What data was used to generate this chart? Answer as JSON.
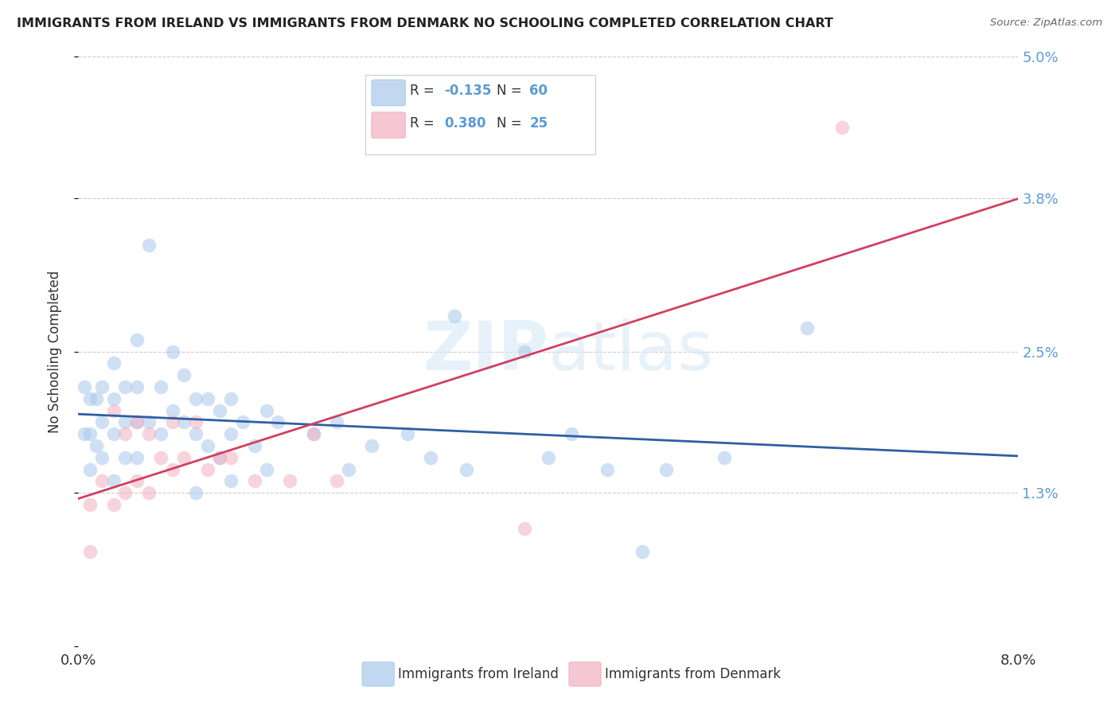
{
  "title": "IMMIGRANTS FROM IRELAND VS IMMIGRANTS FROM DENMARK NO SCHOOLING COMPLETED CORRELATION CHART",
  "source": "Source: ZipAtlas.com",
  "ylabel": "No Schooling Completed",
  "xlim": [
    0.0,
    0.08
  ],
  "ylim": [
    0.0,
    0.05
  ],
  "ytick_vals": [
    0.0,
    0.013,
    0.025,
    0.038,
    0.05
  ],
  "ytick_labels": [
    "",
    "1.3%",
    "2.5%",
    "3.8%",
    "5.0%"
  ],
  "xtick_vals": [
    0.0,
    0.02,
    0.04,
    0.06,
    0.08
  ],
  "xtick_labels": [
    "0.0%",
    "",
    "",
    "",
    "8.0%"
  ],
  "ireland_color": "#A8C8EC",
  "ireland_line_color": "#2E5FA3",
  "denmark_color": "#F2B0C0",
  "denmark_line_color": "#D04060",
  "ireland_R": "-0.135",
  "ireland_N": "60",
  "denmark_R": "0.380",
  "denmark_N": "25",
  "legend_label_ireland": "Immigrants from Ireland",
  "legend_label_denmark": "Immigrants from Denmark",
  "watermark_zip": "ZIP",
  "watermark_atlas": "atlas",
  "background_color": "#ffffff",
  "axis_label_color": "#5B9BD5",
  "ireland_x": [
    0.0005,
    0.0005,
    0.001,
    0.001,
    0.001,
    0.0015,
    0.0015,
    0.002,
    0.002,
    0.002,
    0.003,
    0.003,
    0.003,
    0.003,
    0.004,
    0.004,
    0.004,
    0.005,
    0.005,
    0.005,
    0.005,
    0.006,
    0.006,
    0.007,
    0.007,
    0.008,
    0.008,
    0.009,
    0.009,
    0.01,
    0.01,
    0.01,
    0.011,
    0.011,
    0.012,
    0.012,
    0.013,
    0.013,
    0.013,
    0.014,
    0.015,
    0.016,
    0.016,
    0.017,
    0.02,
    0.022,
    0.023,
    0.025,
    0.028,
    0.03,
    0.032,
    0.033,
    0.038,
    0.04,
    0.042,
    0.045,
    0.048,
    0.05,
    0.055,
    0.062
  ],
  "ireland_y": [
    0.022,
    0.018,
    0.021,
    0.018,
    0.015,
    0.021,
    0.017,
    0.022,
    0.019,
    0.016,
    0.024,
    0.021,
    0.018,
    0.014,
    0.022,
    0.019,
    0.016,
    0.026,
    0.022,
    0.019,
    0.016,
    0.034,
    0.019,
    0.022,
    0.018,
    0.025,
    0.02,
    0.023,
    0.019,
    0.021,
    0.018,
    0.013,
    0.021,
    0.017,
    0.02,
    0.016,
    0.021,
    0.018,
    0.014,
    0.019,
    0.017,
    0.02,
    0.015,
    0.019,
    0.018,
    0.019,
    0.015,
    0.017,
    0.018,
    0.016,
    0.028,
    0.015,
    0.025,
    0.016,
    0.018,
    0.015,
    0.008,
    0.015,
    0.016,
    0.027
  ],
  "denmark_x": [
    0.001,
    0.001,
    0.002,
    0.003,
    0.003,
    0.004,
    0.004,
    0.005,
    0.005,
    0.006,
    0.006,
    0.007,
    0.008,
    0.008,
    0.009,
    0.01,
    0.011,
    0.012,
    0.013,
    0.015,
    0.018,
    0.02,
    0.022,
    0.038,
    0.065
  ],
  "denmark_y": [
    0.012,
    0.008,
    0.014,
    0.02,
    0.012,
    0.018,
    0.013,
    0.019,
    0.014,
    0.018,
    0.013,
    0.016,
    0.019,
    0.015,
    0.016,
    0.019,
    0.015,
    0.016,
    0.016,
    0.014,
    0.014,
    0.018,
    0.014,
    0.01,
    0.044
  ]
}
